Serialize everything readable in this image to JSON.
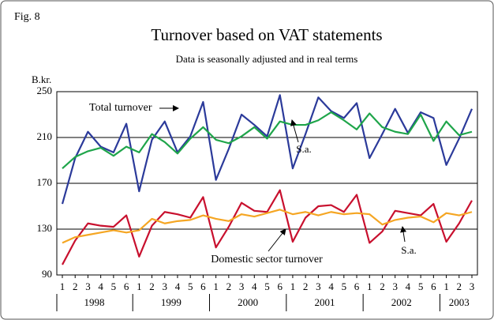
{
  "chart_data": {
    "type": "line",
    "figure_label": "Fig. 8",
    "title": "Turnover based on VAT statements",
    "subtitle": "Data is seasonally adjusted and in real terms",
    "y_label": "B.kr.",
    "categories": [
      "1",
      "2",
      "3",
      "4",
      "5",
      "6",
      "1",
      "2",
      "3",
      "4",
      "5",
      "6",
      "1",
      "2",
      "3",
      "4",
      "5",
      "6",
      "1",
      "2",
      "3",
      "4",
      "5",
      "6",
      "1",
      "2",
      "3",
      "4",
      "5",
      "6",
      "1",
      "2",
      "3"
    ],
    "years": [
      "1998",
      "1999",
      "2000",
      "2001",
      "2002",
      "2003"
    ],
    "ylim": [
      90,
      250
    ],
    "yticks": [
      90,
      130,
      170,
      210,
      250
    ],
    "grid": true,
    "series": [
      {
        "name": "Total turnover",
        "color": "#2b3a9a",
        "values": [
          152,
          192,
          215,
          202,
          197,
          222,
          163,
          208,
          224,
          197,
          211,
          241,
          173,
          200,
          230,
          221,
          211,
          247,
          183,
          213,
          245,
          233,
          227,
          240,
          192,
          213,
          235,
          214,
          232,
          227,
          186,
          209,
          235
        ]
      },
      {
        "name": "S.a.",
        "color": "#1fa54a",
        "values": [
          183,
          193,
          198,
          201,
          194,
          202,
          197,
          213,
          206,
          196,
          209,
          219,
          208,
          205,
          211,
          219,
          209,
          224,
          221,
          221,
          225,
          232,
          225,
          217,
          231,
          219,
          215,
          213,
          230,
          207,
          224,
          212,
          215
        ]
      },
      {
        "name": "Domestic sector turnover",
        "color": "#c8102e",
        "values": [
          99,
          120,
          135,
          133,
          132,
          142,
          106,
          133,
          145,
          143,
          140,
          158,
          114,
          132,
          153,
          146,
          145,
          164,
          119,
          140,
          150,
          151,
          145,
          160,
          118,
          128,
          146,
          144,
          142,
          152,
          119,
          135,
          155
        ]
      },
      {
        "name": "S.a.",
        "color": "#f5a623",
        "values": [
          118,
          123,
          125,
          127,
          129,
          127,
          129,
          139,
          135,
          137,
          138,
          142,
          139,
          137,
          143,
          141,
          144,
          147,
          143,
          145,
          142,
          145,
          143,
          144,
          143,
          134,
          138,
          140,
          141,
          136,
          144,
          142,
          145
        ]
      }
    ]
  }
}
